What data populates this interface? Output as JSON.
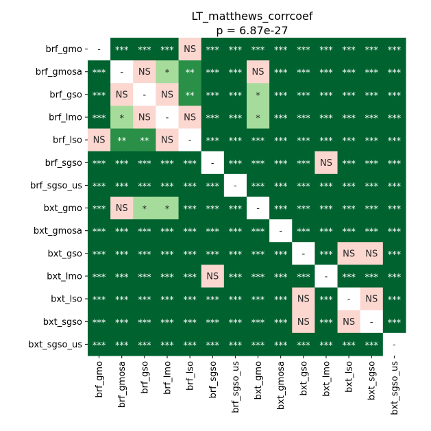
{
  "chart_data": {
    "type": "heatmap",
    "title": "LT_matthews_corrcoef",
    "subtitle": "p = 6.87e-27",
    "labels": [
      "brf_gmo",
      "brf_gmosa",
      "brf_gso",
      "brf_lmo",
      "brf_lso",
      "brf_sgso",
      "brf_sgso_us",
      "bxt_gmo",
      "bxt_gmosa",
      "bxt_gso",
      "bxt_lmo",
      "bxt_lso",
      "bxt_sgso",
      "bxt_sgso_us"
    ],
    "matrix": [
      [
        "-",
        "***",
        "***",
        "***",
        "NS",
        "***",
        "***",
        "***",
        "***",
        "***",
        "***",
        "***",
        "***",
        "***"
      ],
      [
        "***",
        "-",
        "NS",
        "*",
        "**",
        "***",
        "***",
        "NS",
        "***",
        "***",
        "***",
        "***",
        "***",
        "***"
      ],
      [
        "***",
        "NS",
        "-",
        "NS",
        "**",
        "***",
        "***",
        "*",
        "***",
        "***",
        "***",
        "***",
        "***",
        "***"
      ],
      [
        "***",
        "*",
        "NS",
        "-",
        "NS",
        "***",
        "***",
        "*",
        "***",
        "***",
        "***",
        "***",
        "***",
        "***"
      ],
      [
        "NS",
        "**",
        "**",
        "NS",
        "-",
        "***",
        "***",
        "***",
        "***",
        "***",
        "***",
        "***",
        "***",
        "***"
      ],
      [
        "***",
        "***",
        "***",
        "***",
        "***",
        "-",
        "***",
        "***",
        "***",
        "***",
        "NS",
        "***",
        "***",
        "***"
      ],
      [
        "***",
        "***",
        "***",
        "***",
        "***",
        "***",
        "-",
        "***",
        "***",
        "***",
        "***",
        "***",
        "***",
        "***"
      ],
      [
        "***",
        "NS",
        "*",
        "*",
        "***",
        "***",
        "***",
        "-",
        "***",
        "***",
        "***",
        "***",
        "***",
        "***"
      ],
      [
        "***",
        "***",
        "***",
        "***",
        "***",
        "***",
        "***",
        "***",
        "-",
        "***",
        "***",
        "***",
        "***",
        "***"
      ],
      [
        "***",
        "***",
        "***",
        "***",
        "***",
        "***",
        "***",
        "***",
        "***",
        "-",
        "***",
        "NS",
        "NS",
        "***"
      ],
      [
        "***",
        "***",
        "***",
        "***",
        "***",
        "NS",
        "***",
        "***",
        "***",
        "***",
        "-",
        "***",
        "***",
        "***"
      ],
      [
        "***",
        "***",
        "***",
        "***",
        "***",
        "***",
        "***",
        "***",
        "***",
        "NS",
        "***",
        "-",
        "NS",
        "***"
      ],
      [
        "***",
        "***",
        "***",
        "***",
        "***",
        "***",
        "***",
        "***",
        "***",
        "NS",
        "***",
        "NS",
        "-",
        "***"
      ],
      [
        "***",
        "***",
        "***",
        "***",
        "***",
        "***",
        "***",
        "***",
        "***",
        "***",
        "***",
        "***",
        "***",
        "-"
      ]
    ],
    "colors": {
      "***": "#00622f",
      "**": "#2a9047",
      "*": "#a5dc9c",
      "NS": "#fbd7d0",
      "-": "#ffffff"
    },
    "text_colors": {
      "***": "#ffffff",
      "**": "#ffffff",
      "*": "#262626",
      "NS": "#262626",
      "-": "#262626"
    },
    "grid": false,
    "colorbar": false
  }
}
